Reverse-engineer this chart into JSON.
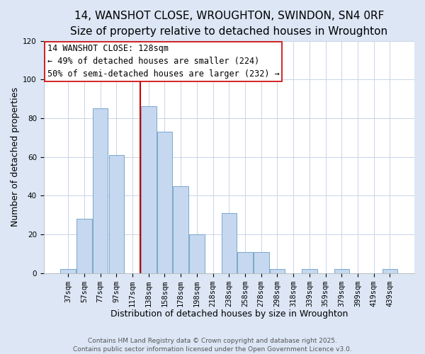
{
  "title": "14, WANSHOT CLOSE, WROUGHTON, SWINDON, SN4 0RF",
  "subtitle": "Size of property relative to detached houses in Wroughton",
  "xlabel": "Distribution of detached houses by size in Wroughton",
  "ylabel": "Number of detached properties",
  "bar_labels": [
    "37sqm",
    "57sqm",
    "77sqm",
    "97sqm",
    "117sqm",
    "138sqm",
    "158sqm",
    "178sqm",
    "198sqm",
    "218sqm",
    "238sqm",
    "258sqm",
    "278sqm",
    "298sqm",
    "318sqm",
    "339sqm",
    "359sqm",
    "379sqm",
    "399sqm",
    "419sqm",
    "439sqm"
  ],
  "bar_heights": [
    2,
    28,
    85,
    61,
    0,
    86,
    73,
    45,
    20,
    0,
    31,
    11,
    11,
    2,
    0,
    2,
    0,
    2,
    0,
    0,
    2
  ],
  "bar_color": "#c5d8ef",
  "bar_edge_color": "#7aa6ce",
  "vline_x_idx": 5,
  "vline_color": "#cc0000",
  "ylim": [
    0,
    120
  ],
  "yticks": [
    0,
    20,
    40,
    60,
    80,
    100,
    120
  ],
  "annotation_title": "14 WANSHOT CLOSE: 128sqm",
  "annotation_line1": "← 49% of detached houses are smaller (224)",
  "annotation_line2": "50% of semi-detached houses are larger (232) →",
  "footer1": "Contains HM Land Registry data © Crown copyright and database right 2025.",
  "footer2": "Contains public sector information licensed under the Open Government Licence v3.0.",
  "background_color": "#dce6f5",
  "plot_background": "#ffffff",
  "grid_color": "#c8d4e8",
  "title_fontsize": 11,
  "subtitle_fontsize": 9.5,
  "xlabel_fontsize": 9,
  "ylabel_fontsize": 9,
  "tick_fontsize": 7.5,
  "annotation_fontsize": 8.5,
  "footer_fontsize": 6.5
}
